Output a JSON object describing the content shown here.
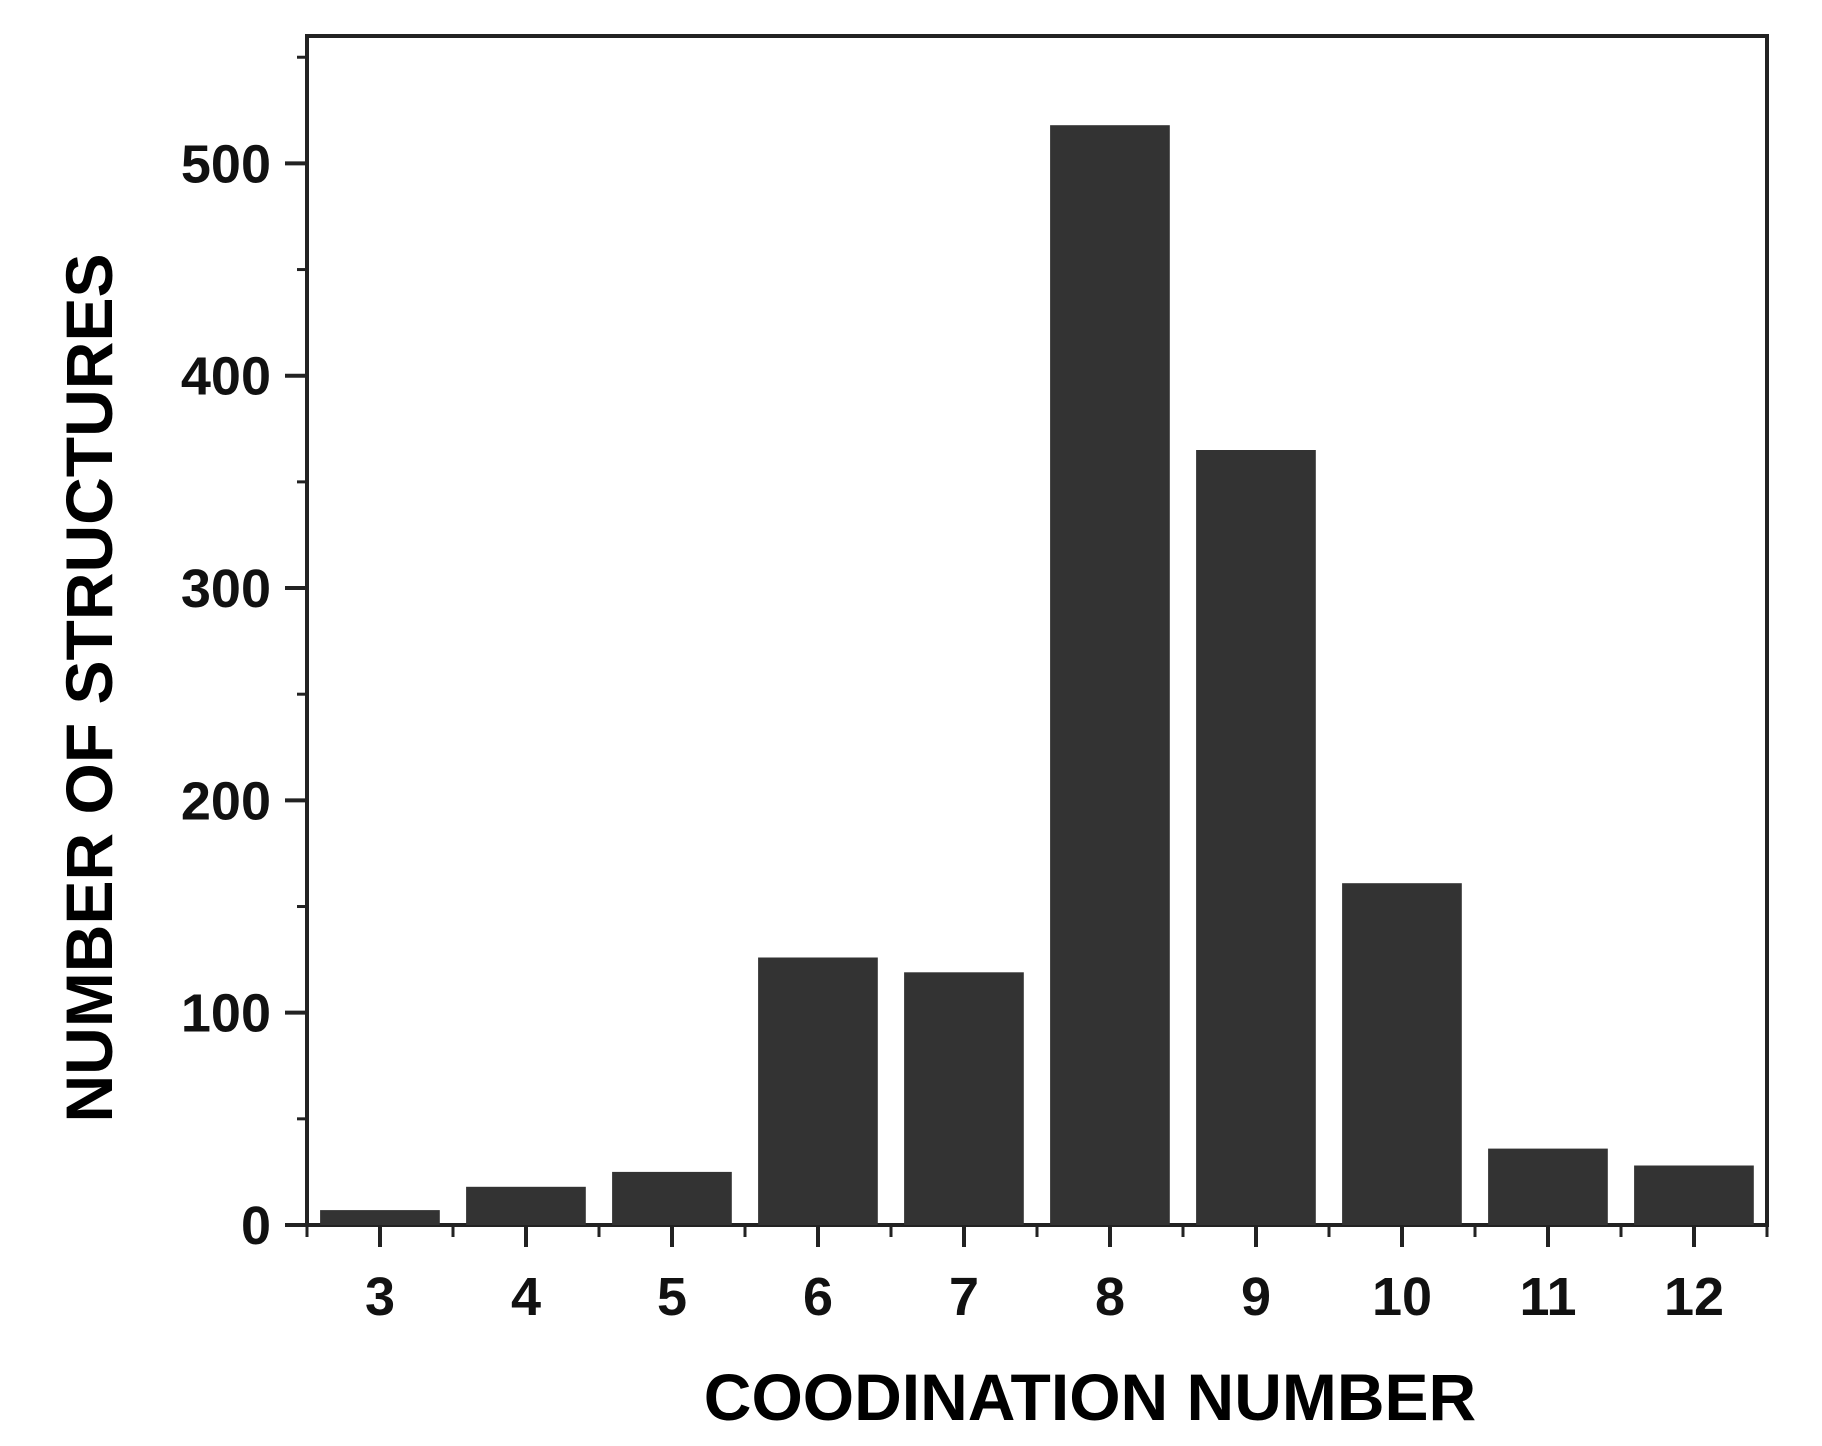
{
  "chart_data": {
    "type": "bar",
    "title": "",
    "xlabel": "COODINATION NUMBER",
    "ylabel": "NUMBER OF STRUCTURES",
    "categories": [
      "3",
      "4",
      "5",
      "6",
      "7",
      "8",
      "9",
      "10",
      "11",
      "12"
    ],
    "values": [
      7,
      18,
      25,
      126,
      119,
      518,
      365,
      161,
      36,
      28
    ],
    "ylim": [
      0,
      560
    ],
    "yticks": [
      0,
      100,
      200,
      300,
      400,
      500
    ],
    "y_minor_step": 50,
    "grid": false,
    "legend": "none",
    "bar_color": "#333333",
    "axis_color": "#222222"
  }
}
